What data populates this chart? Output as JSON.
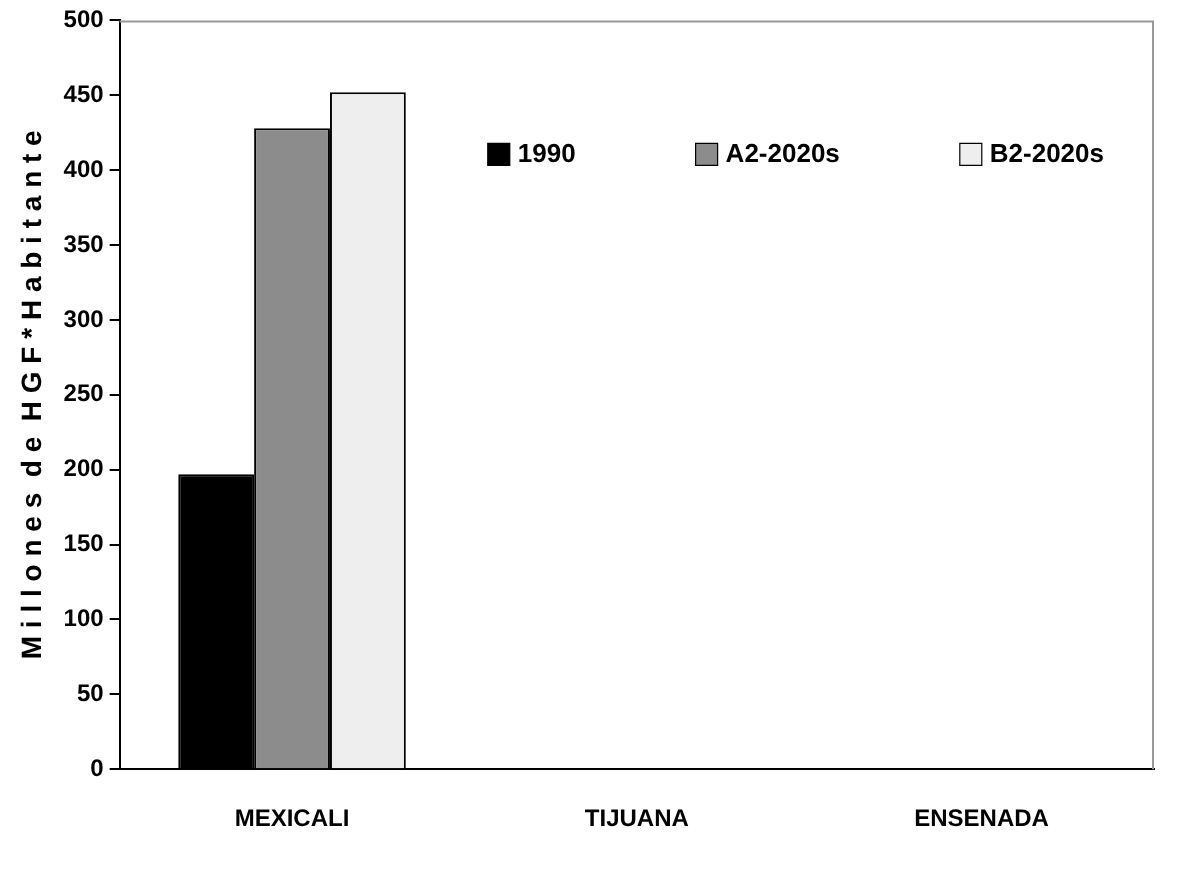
{
  "chart_data": {
    "type": "bar",
    "ylabel": "M i l l o n e s  d e  H G F * H a b i t a n t e",
    "categories": [
      "MEXICALI",
      "TIJUANA",
      "ENSENADA"
    ],
    "series": [
      {
        "name": "1990",
        "color": "#000000",
        "values": [
          197,
          null,
          null
        ]
      },
      {
        "name": "A2-2020s",
        "color": "#8c8c8c",
        "values": [
          428,
          null,
          null
        ]
      },
      {
        "name": "B2-2020s",
        "color": "#eeeeee",
        "values": [
          452,
          null,
          null
        ]
      }
    ],
    "ylim": [
      0,
      500
    ],
    "yticks": [
      0,
      50,
      100,
      150,
      200,
      250,
      300,
      350,
      400,
      450,
      500
    ],
    "grid": false,
    "legend": "top right"
  }
}
